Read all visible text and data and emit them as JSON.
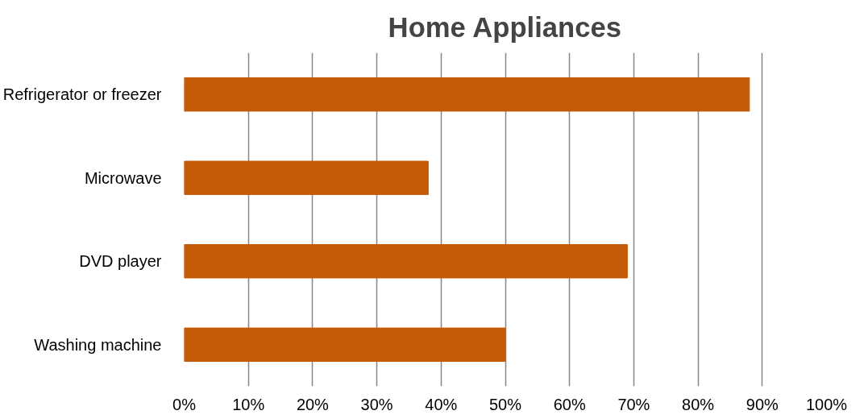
{
  "chart_data": {
    "type": "bar",
    "orientation": "horizontal",
    "title": "Home Appliances",
    "categories": [
      "Refrigerator or freezer",
      "Microwave",
      "DVD player",
      "Washing machine"
    ],
    "values": [
      88,
      38,
      69,
      50
    ],
    "color": "#c55a07",
    "xlim": [
      0,
      100
    ],
    "xticks": [
      {
        "value": 0,
        "label": "0%"
      },
      {
        "value": 10,
        "label": "10%"
      },
      {
        "value": 20,
        "label": "20%"
      },
      {
        "value": 30,
        "label": "30%"
      },
      {
        "value": 40,
        "label": "40%"
      },
      {
        "value": 50,
        "label": "50%"
      },
      {
        "value": 60,
        "label": "60%"
      },
      {
        "value": 70,
        "label": "70%"
      },
      {
        "value": 80,
        "label": "80%"
      },
      {
        "value": 90,
        "label": "90%"
      },
      {
        "value": 100,
        "label": "100%"
      }
    ],
    "grid": "x"
  }
}
